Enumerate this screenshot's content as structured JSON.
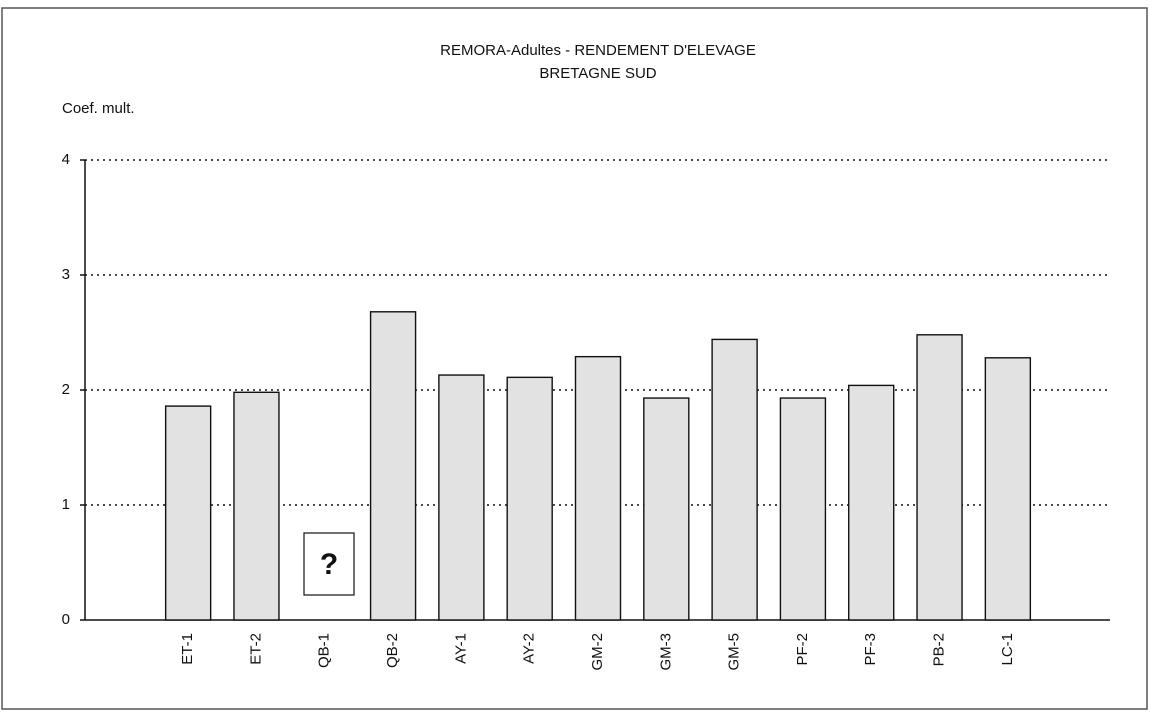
{
  "chart_data": {
    "type": "bar",
    "title": "REMORA-Adultes - RENDEMENT D'ELEVAGE",
    "subtitle": "BRETAGNE SUD",
    "y_label": "Coef. mult.",
    "categories": [
      "ET-1",
      "ET-2",
      "QB-1",
      "QB-2",
      "AY-1",
      "AY-2",
      "GM-2",
      "GM-3",
      "GM-5",
      "PF-2",
      "PF-3",
      "PB-2",
      "LC-1"
    ],
    "values": [
      1.86,
      1.98,
      null,
      2.68,
      2.13,
      2.11,
      2.29,
      1.93,
      2.44,
      1.93,
      2.04,
      2.48,
      2.28
    ],
    "annotation": "?",
    "color": "#e2e2e2",
    "ylim": [
      0,
      4
    ],
    "yticks": [
      0,
      1,
      2,
      3,
      4
    ],
    "grid": true
  }
}
